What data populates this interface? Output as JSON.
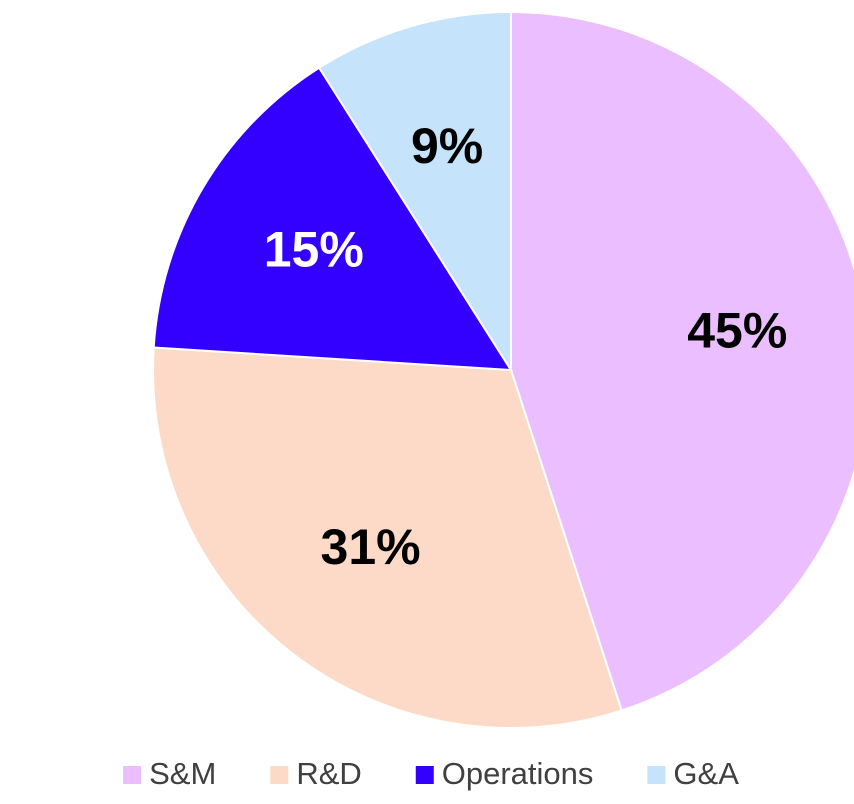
{
  "chart_data": {
    "type": "pie",
    "categories": [
      "S&M",
      "R&D",
      "Operations",
      "G&A"
    ],
    "values": [
      45,
      31,
      15,
      9
    ],
    "value_labels": [
      "45%",
      "31%",
      "15%",
      "9%"
    ],
    "colors": [
      "#ebbfff",
      "#fddac8",
      "#3300ff",
      "#c5e3fb"
    ],
    "legend": "bottom"
  }
}
